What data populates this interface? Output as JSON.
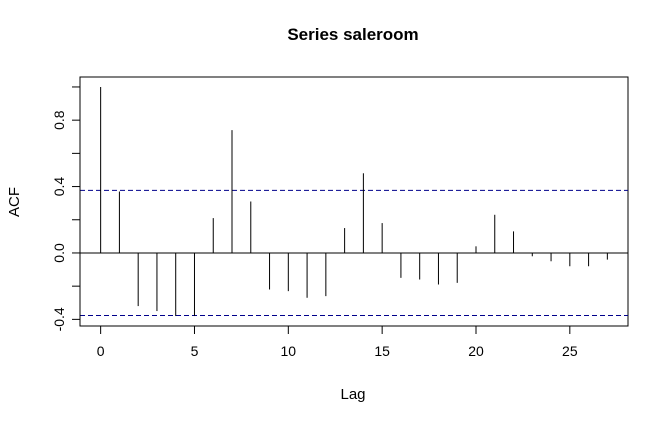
{
  "chart_data": {
    "type": "bar",
    "title": "Series  saleroom",
    "xlabel": "Lag",
    "ylabel": "ACF",
    "xlim": [
      -1.1,
      28.1
    ],
    "ylim": [
      -0.44,
      1.06
    ],
    "x_ticks": [
      0,
      5,
      10,
      15,
      20,
      25
    ],
    "y_ticks": [
      -0.4,
      0.0,
      0.4,
      0.8
    ],
    "y_tick_labels": [
      "-0.4",
      "0.0",
      "0.4",
      "0.8"
    ],
    "confidence_band": 0.377,
    "band_color": "#00008b",
    "lags": [
      0,
      1,
      2,
      3,
      4,
      5,
      6,
      7,
      8,
      9,
      10,
      11,
      12,
      13,
      14,
      15,
      16,
      17,
      18,
      19,
      20,
      21,
      22,
      23,
      24,
      25,
      26,
      27
    ],
    "acf": [
      1.0,
      0.37,
      -0.32,
      -0.35,
      -0.38,
      -0.38,
      0.21,
      0.74,
      0.31,
      -0.22,
      -0.23,
      -0.27,
      -0.26,
      0.15,
      0.48,
      0.18,
      -0.15,
      -0.16,
      -0.19,
      -0.18,
      0.04,
      0.23,
      0.13,
      -0.02,
      -0.05,
      -0.08,
      -0.08,
      -0.04
    ]
  }
}
